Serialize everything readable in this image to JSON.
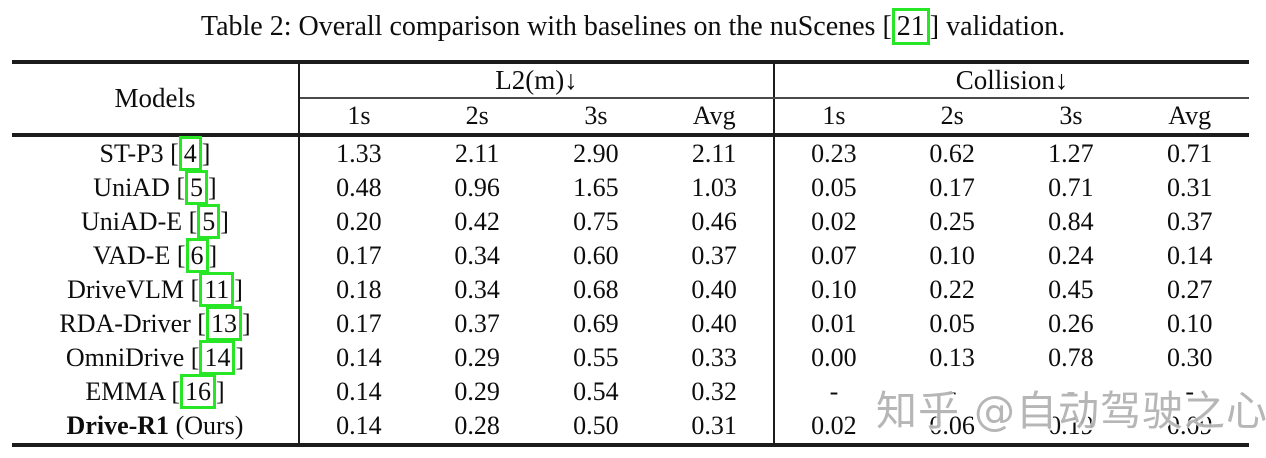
{
  "caption": {
    "before": "Table 2: Overall comparison with baselines on the nuScenes [",
    "cite": "21",
    "after": "] validation."
  },
  "colors": {
    "citation_box_green": "#26e626",
    "watermark_gray": "#acacac",
    "rule_black": "#1c1c1c"
  },
  "table": {
    "models_header": "Models",
    "cite_open": " [",
    "cite_close": "]",
    "groups": [
      {
        "label": "L2(m)↓"
      },
      {
        "label": "Collision↓"
      }
    ],
    "subheaders": [
      "1s",
      "2s",
      "3s",
      "Avg"
    ],
    "rows": [
      {
        "label": "ST-P3",
        "cite": "4",
        "l2": [
          "1.33",
          "2.11",
          "2.90",
          "2.11"
        ],
        "collision": [
          "0.23",
          "0.62",
          "1.27",
          "0.71"
        ]
      },
      {
        "label": "UniAD",
        "cite": "5",
        "l2": [
          "0.48",
          "0.96",
          "1.65",
          "1.03"
        ],
        "collision": [
          "0.05",
          "0.17",
          "0.71",
          "0.31"
        ]
      },
      {
        "label": "UniAD-E",
        "cite": "5",
        "l2": [
          "0.20",
          "0.42",
          "0.75",
          "0.46"
        ],
        "collision": [
          "0.02",
          "0.25",
          "0.84",
          "0.37"
        ]
      },
      {
        "label": "VAD-E",
        "cite": "6",
        "l2": [
          "0.17",
          "0.34",
          "0.60",
          "0.37"
        ],
        "collision": [
          "0.07",
          "0.10",
          "0.24",
          "0.14"
        ]
      },
      {
        "label": "DriveVLM",
        "cite": "11",
        "l2": [
          "0.18",
          "0.34",
          "0.68",
          "0.40"
        ],
        "collision": [
          "0.10",
          "0.22",
          "0.45",
          "0.27"
        ]
      },
      {
        "label": "RDA-Driver",
        "cite": "13",
        "l2": [
          "0.17",
          "0.37",
          "0.69",
          "0.40"
        ],
        "collision": [
          "0.01",
          "0.05",
          "0.26",
          "0.10"
        ]
      },
      {
        "label": "OmniDrive",
        "cite": "14",
        "l2": [
          "0.14",
          "0.29",
          "0.55",
          "0.33"
        ],
        "collision": [
          "0.00",
          "0.13",
          "0.78",
          "0.30"
        ]
      },
      {
        "label": "EMMA",
        "cite": "16",
        "l2": [
          "0.14",
          "0.29",
          "0.54",
          "0.32"
        ],
        "collision": [
          "-",
          "-",
          "-",
          "-"
        ]
      },
      {
        "label": "Drive-R1",
        "suffix": " (Ours)",
        "l2": [
          "0.14",
          "0.28",
          "0.50",
          "0.31"
        ],
        "collision": [
          "0.02",
          "0.06",
          "0.19",
          "0.09"
        ]
      }
    ]
  },
  "watermark": {
    "text": "知乎 @自动驾驶之心"
  }
}
